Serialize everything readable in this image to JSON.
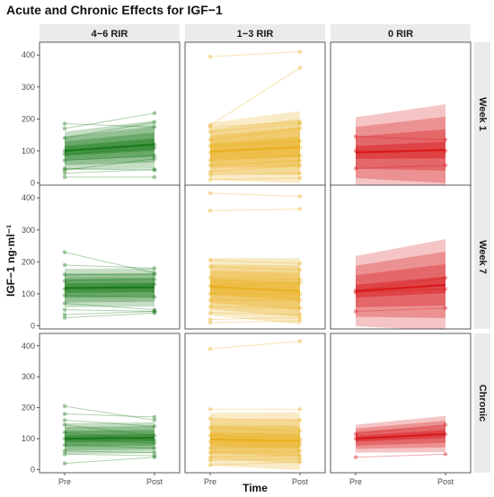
{
  "chart_data": {
    "type": "line",
    "title": "Acute and Chronic Effects for IGF−1",
    "xlabel": "Time",
    "ylabel": "IGF−1 ng·ml⁻¹",
    "x_ticks": [
      "Pre",
      "Post"
    ],
    "y_ticks": [
      "0",
      "100",
      "200",
      "300",
      "400"
    ],
    "ylim": [
      -10,
      440
    ],
    "grid": false,
    "columns": [
      {
        "label": "4−6 RIR",
        "color": "#1b7a1b"
      },
      {
        "label": "1−3 RIR",
        "color": "#e8b020"
      },
      {
        "label": "0 RIR",
        "color": "#d7191c"
      }
    ],
    "rows": [
      "Week 1",
      "Week 7",
      "Chronic"
    ],
    "panels": [
      [
        {
          "subjects": [
            [
              185,
              175
            ],
            [
              170,
              218
            ],
            [
              140,
              190
            ],
            [
              100,
              120
            ],
            [
              90,
              110
            ],
            [
              70,
              85
            ],
            [
              45,
              40
            ],
            [
              40,
              75
            ],
            [
              30,
              42
            ],
            [
              18,
              18
            ]
          ],
          "mean": [
            100,
            120
          ],
          "band_halfwidths": [
            60,
            45,
            30,
            15
          ],
          "band_slope": 0.25
        },
        {
          "subjects": [
            [
              395,
              410
            ],
            [
              180,
              360
            ],
            [
              175,
              190
            ],
            [
              160,
              185
            ],
            [
              135,
              170
            ],
            [
              115,
              130
            ],
            [
              95,
              110
            ],
            [
              70,
              85
            ],
            [
              55,
              70
            ],
            [
              35,
              55
            ],
            [
              25,
              30
            ],
            [
              10,
              15
            ]
          ],
          "mean": [
            98,
            112
          ],
          "band_halfwidths": [
            90,
            70,
            50,
            25
          ],
          "band_slope": 0.25
        },
        {
          "subjects": [
            [
              145,
              135
            ],
            [
              100,
              100
            ],
            [
              45,
              55
            ]
          ],
          "mean": [
            95,
            103
          ],
          "band_halfwidths": [
            110,
            80,
            50,
            20
          ],
          "band_slope": 0.3
        }
      ],
      [
        {
          "subjects": [
            [
              230,
              165
            ],
            [
              190,
              180
            ],
            [
              160,
              160
            ],
            [
              140,
              145
            ],
            [
              115,
              130
            ],
            [
              95,
              90
            ],
            [
              70,
              50
            ],
            [
              50,
              45
            ],
            [
              35,
              45
            ],
            [
              25,
              40
            ]
          ],
          "mean": [
            118,
            120
          ],
          "band_halfwidths": [
            60,
            45,
            30,
            15
          ],
          "band_slope": 0
        },
        {
          "subjects": [
            [
              415,
              405
            ],
            [
              360,
              365
            ],
            [
              205,
              195
            ],
            [
              185,
              175
            ],
            [
              150,
              145
            ],
            [
              125,
              135
            ],
            [
              100,
              100
            ],
            [
              80,
              80
            ],
            [
              60,
              55
            ],
            [
              40,
              35
            ],
            [
              20,
              25
            ],
            [
              10,
              15
            ]
          ],
          "mean": [
            122,
            108
          ],
          "band_halfwidths": [
            90,
            70,
            50,
            25
          ],
          "band_slope": 0.15
        },
        {
          "subjects": [
            [
              110,
              150
            ],
            [
              105,
              115
            ],
            [
              45,
              55
            ]
          ],
          "mean": [
            108,
            128
          ],
          "band_halfwidths": [
            110,
            80,
            50,
            20
          ],
          "band_slope": 0.3
        }
      ],
      [
        {
          "subjects": [
            [
              205,
              160
            ],
            [
              180,
              170
            ],
            [
              160,
              140
            ],
            [
              145,
              110
            ],
            [
              120,
              95
            ],
            [
              100,
              85
            ],
            [
              80,
              70
            ],
            [
              60,
              55
            ],
            [
              50,
              45
            ],
            [
              20,
              40
            ]
          ],
          "mean": [
            100,
            103
          ],
          "band_halfwidths": [
            50,
            38,
            25,
            12
          ],
          "band_slope": 0
        },
        {
          "subjects": [
            [
              390,
              415
            ],
            [
              195,
              195
            ],
            [
              165,
              160
            ],
            [
              135,
              125
            ],
            [
              110,
              100
            ],
            [
              90,
              90
            ],
            [
              70,
              80
            ],
            [
              55,
              60
            ],
            [
              40,
              45
            ],
            [
              30,
              35
            ],
            [
              15,
              25
            ]
          ],
          "mean": [
            98,
            92
          ],
          "band_halfwidths": [
            85,
            65,
            45,
            22
          ],
          "band_slope": 0.1
        },
        {
          "subjects": [
            [
              115,
              145
            ],
            [
              100,
              115
            ],
            [
              40,
              50
            ]
          ],
          "mean": [
            100,
            115
          ],
          "band_halfwidths": [
            45,
            33,
            22,
            10
          ],
          "band_slope": 0.3
        }
      ]
    ]
  }
}
